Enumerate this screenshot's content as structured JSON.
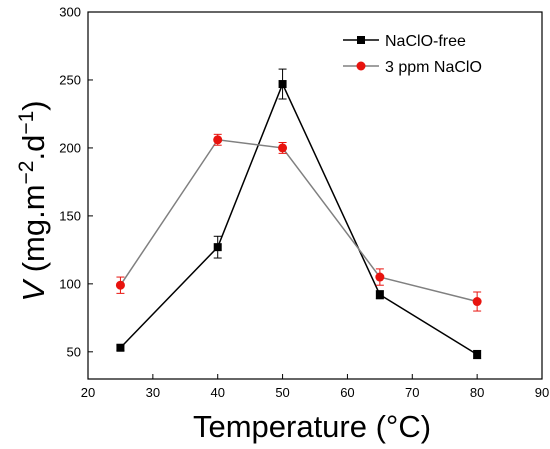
{
  "chart_data": {
    "type": "line",
    "title": "",
    "xlabel": "Temperature (°C)",
    "ylabel_italic": "V",
    "ylabel_rest": " (mg.m",
    "ylabel_sup1": "−2",
    "ylabel_mid": ".d",
    "ylabel_sup2": "−1",
    "ylabel_end": ")",
    "xlim": [
      20,
      90
    ],
    "ylim": [
      30,
      300
    ],
    "xticks": [
      20,
      30,
      40,
      50,
      60,
      70,
      80,
      90
    ],
    "yticks": [
      50,
      100,
      150,
      200,
      250,
      300
    ],
    "legend_position": "top-right",
    "series": [
      {
        "name": "NaClO-free",
        "color": "#000000",
        "line_color": "#000000",
        "marker": "square",
        "x": [
          25,
          40,
          50,
          65,
          80
        ],
        "y": [
          53,
          127,
          247,
          92,
          48
        ],
        "err": [
          2,
          8,
          11,
          3,
          3
        ]
      },
      {
        "name": "3 ppm NaClO",
        "color": "#e8130e",
        "line_color": "#808080",
        "marker": "circle",
        "x": [
          25,
          40,
          50,
          65,
          80
        ],
        "y": [
          99,
          206,
          200,
          105,
          87
        ],
        "err": [
          6,
          4,
          4,
          6,
          7
        ]
      }
    ]
  }
}
